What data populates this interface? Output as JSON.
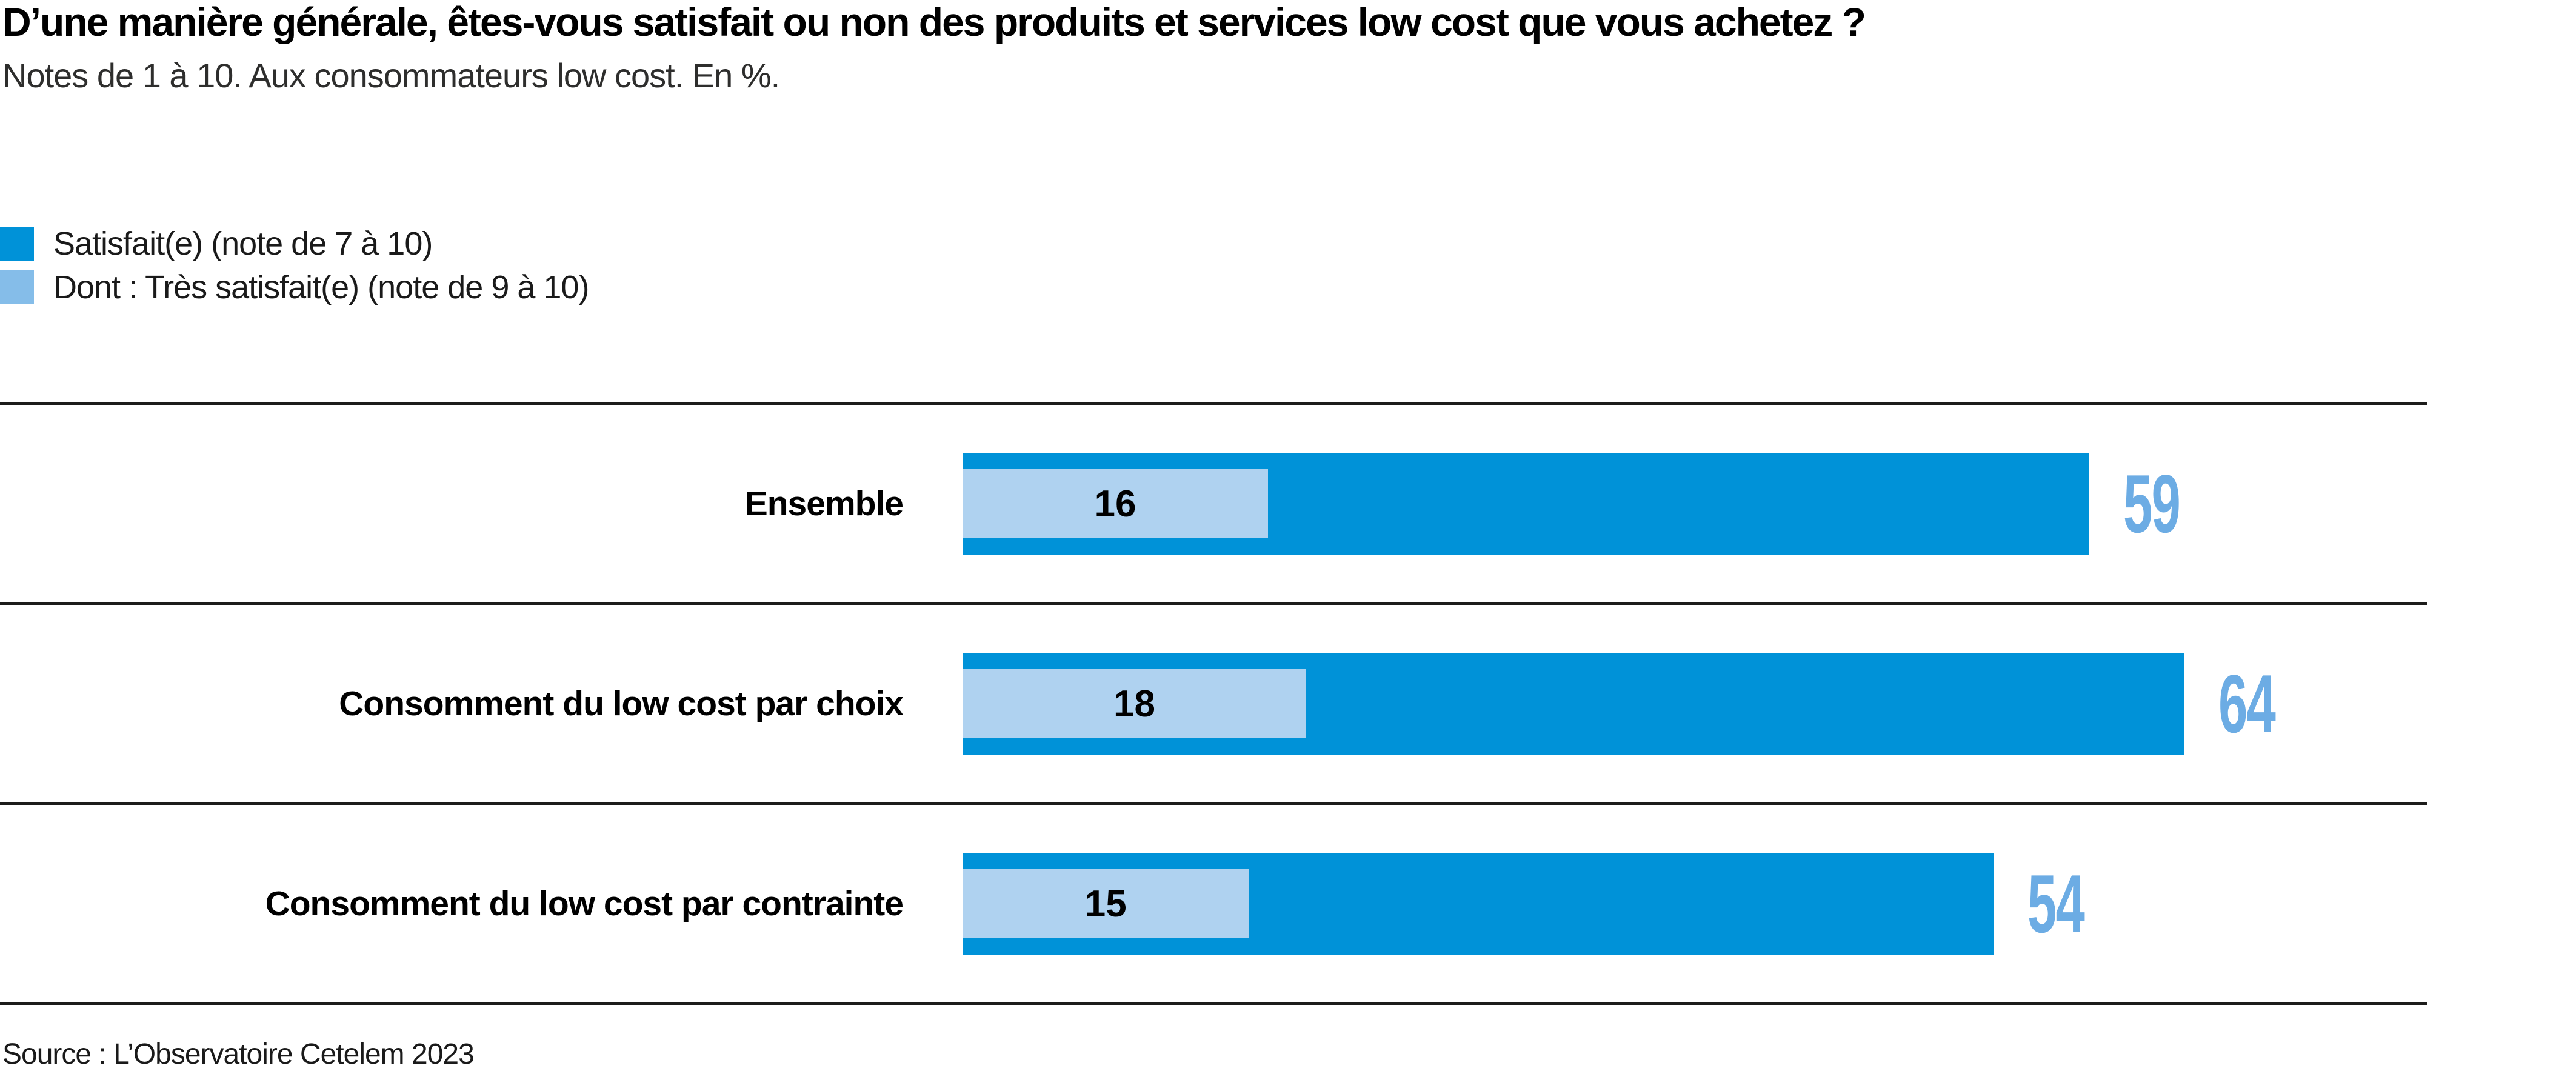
{
  "header": {
    "title": "D’une manière générale, êtes-vous satisfait ou non des produits et services low cost que vous achetez ?",
    "subtitle": "Notes de 1 à 10. Aux consommateurs low cost. En %."
  },
  "legend": {
    "items": [
      {
        "label": "Satisfait(e) (note de 7 à 10)",
        "color": "#0092D8"
      },
      {
        "label": "Dont : Très satisfait(e) (note de 9 à 10)",
        "color": "#85BDE9"
      }
    ]
  },
  "chart_data": {
    "type": "bar",
    "orientation": "horizontal",
    "unit": "%",
    "title": "D’une manière générale, êtes-vous satisfait ou non des produits et services low cost que vous achetez ?",
    "subtitle": "Notes de 1 à 10. Aux consommateurs low cost. En %.",
    "categories": [
      "Ensemble",
      "Consomment du low cost par choix",
      "Consomment du low cost par contrainte"
    ],
    "series": [
      {
        "name": "Satisfait(e) (note de 7 à 10)",
        "values": [
          59,
          64,
          54
        ]
      },
      {
        "name": "Dont : Très satisfait(e) (note de 9 à 10)",
        "values": [
          16,
          18,
          15
        ]
      }
    ],
    "xlim": [
      0,
      100
    ],
    "grid": false,
    "legend_position": "top-left",
    "bar_color": "#0092D8",
    "inner_bar_color": "#AFD2F0",
    "value_label_color": "#6CACE4"
  },
  "footer": {
    "source": "Source : L’Observatoire Cetelem 2023"
  }
}
